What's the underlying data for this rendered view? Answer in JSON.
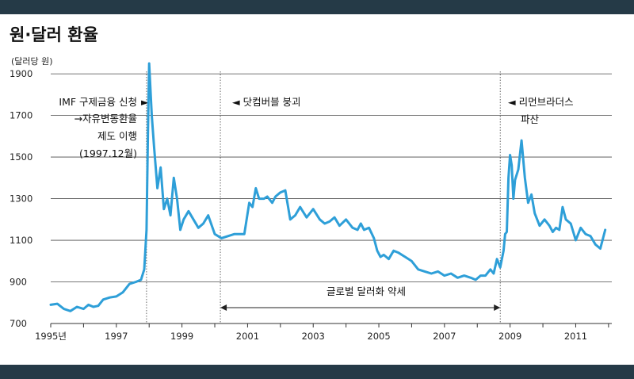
{
  "chart_data": {
    "type": "line",
    "title": "원·달러 환율",
    "ylabel": "(달러당 원)",
    "xlabel": "",
    "xlim": [
      1995,
      2012.1
    ],
    "ylim": [
      700,
      1950
    ],
    "y_ticks": [
      700,
      900,
      1100,
      1300,
      1500,
      1700,
      1900
    ],
    "y_tick_labels": [
      "700",
      "900",
      "1100",
      "1300",
      "1500",
      "1700",
      "1900"
    ],
    "x_ticks": [
      1995,
      1997,
      1999,
      2001,
      2003,
      2005,
      2007,
      2009,
      2011
    ],
    "x_tick_labels": [
      "1995년",
      "1997",
      "1999",
      "2001",
      "2003",
      "2005",
      "2007",
      "2009",
      "2011"
    ],
    "grid": "horizontal",
    "line_color": "#2e9fd8",
    "series": [
      {
        "x": [
          1995.0,
          1995.2,
          1995.4,
          1995.6,
          1995.8,
          1996.0,
          1996.15,
          1996.3,
          1996.45,
          1996.6,
          1996.8,
          1997.0,
          1997.2,
          1997.4,
          1997.6,
          1997.75,
          1997.85,
          1997.92,
          1997.96,
          1998.0,
          1998.08,
          1998.15,
          1998.25,
          1998.35,
          1998.45,
          1998.55,
          1998.65,
          1998.75,
          1998.85,
          1998.95,
          1999.05,
          1999.2,
          1999.35,
          1999.5,
          1999.65,
          1999.8,
          2000.0,
          2000.2,
          2000.4,
          2000.6,
          2000.75,
          2000.9,
          2001.05,
          2001.15,
          2001.25,
          2001.35,
          2001.5,
          2001.6,
          2001.75,
          2001.85,
          2002.0,
          2002.15,
          2002.3,
          2002.45,
          2002.6,
          2002.8,
          2003.0,
          2003.2,
          2003.35,
          2003.5,
          2003.65,
          2003.8,
          2004.0,
          2004.2,
          2004.35,
          2004.45,
          2004.55,
          2004.7,
          2004.85,
          2004.95,
          2005.05,
          2005.15,
          2005.3,
          2005.45,
          2005.6,
          2005.8,
          2006.0,
          2006.2,
          2006.4,
          2006.6,
          2006.8,
          2007.0,
          2007.2,
          2007.4,
          2007.6,
          2007.8,
          2007.95,
          2008.1,
          2008.25,
          2008.4,
          2008.5,
          2008.6,
          2008.7,
          2008.8,
          2008.85,
          2008.9,
          2008.95,
          2009.0,
          2009.05,
          2009.1,
          2009.15,
          2009.25,
          2009.35,
          2009.45,
          2009.55,
          2009.65,
          2009.75,
          2009.9,
          2010.05,
          2010.2,
          2010.3,
          2010.4,
          2010.5,
          2010.6,
          2010.7,
          2010.85,
          2011.0,
          2011.15,
          2011.3,
          2011.45,
          2011.6,
          2011.75,
          2011.9
        ],
        "values": [
          790,
          795,
          770,
          760,
          780,
          770,
          790,
          780,
          785,
          815,
          825,
          830,
          850,
          890,
          900,
          910,
          960,
          1150,
          1600,
          1950,
          1700,
          1550,
          1350,
          1450,
          1250,
          1300,
          1220,
          1400,
          1300,
          1150,
          1200,
          1240,
          1200,
          1160,
          1180,
          1220,
          1130,
          1110,
          1120,
          1130,
          1130,
          1130,
          1280,
          1260,
          1350,
          1300,
          1300,
          1310,
          1280,
          1310,
          1330,
          1340,
          1200,
          1220,
          1260,
          1210,
          1250,
          1200,
          1180,
          1190,
          1210,
          1170,
          1200,
          1160,
          1150,
          1180,
          1150,
          1160,
          1110,
          1050,
          1020,
          1030,
          1010,
          1050,
          1040,
          1020,
          1000,
          960,
          950,
          940,
          950,
          930,
          940,
          920,
          930,
          920,
          910,
          930,
          930,
          960,
          940,
          1010,
          970,
          1050,
          1130,
          1140,
          1400,
          1510,
          1460,
          1300,
          1390,
          1440,
          1580,
          1400,
          1280,
          1320,
          1230,
          1170,
          1200,
          1170,
          1140,
          1160,
          1150,
          1260,
          1200,
          1180,
          1100,
          1160,
          1130,
          1120,
          1080,
          1060,
          1150
        ]
      }
    ],
    "annotations": {
      "imf_lines": [
        "IMF 구제금융 신청",
        "→자유변동환율",
        "제도 이행",
        "(1997.12월)"
      ],
      "imf_marker": "►",
      "dotcom_label": "◄ 닷컴버블 붕괴",
      "lehman_lines": [
        "◄ 리먼브라더스",
        "파산"
      ],
      "weak_dollar_label": "글로벌 달러화 약세"
    },
    "vlines": [
      1997.92,
      2000.17,
      2008.7
    ],
    "weak_dollar_range": [
      2000.17,
      2008.7
    ]
  }
}
